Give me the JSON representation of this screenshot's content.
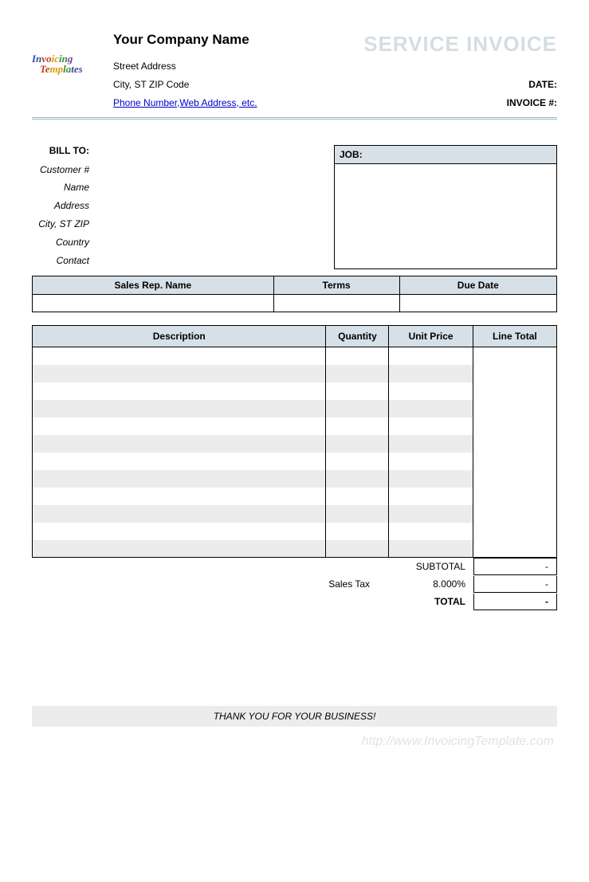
{
  "header": {
    "company_name": "Your Company Name",
    "street": "Street Address",
    "city_line": "City, ST  ZIP Code",
    "contact_link": "Phone Number,Web Address, etc.",
    "invoice_title": "SERVICE INVOICE",
    "date_label": "DATE:",
    "invoice_no_label": "INVOICE #:"
  },
  "logo": {
    "text_top": "Invoicing",
    "text_bottom": "Templates"
  },
  "billto": {
    "heading": "BILL TO:",
    "fields": {
      "customer_no": "Customer #",
      "name": "Name",
      "address": "Address",
      "city": "City, ST ZIP",
      "country": "Country",
      "contact": "Contact"
    }
  },
  "job": {
    "heading": "JOB:"
  },
  "terms": {
    "sales_rep": "Sales Rep. Name",
    "terms": "Terms",
    "due_date": "Due Date"
  },
  "items": {
    "headers": {
      "description": "Description",
      "quantity": "Quantity",
      "unit_price": "Unit Price",
      "line_total": "Line Total"
    },
    "row_count": 12,
    "stripe_color": "#ececec",
    "header_bg": "#d6e0e6"
  },
  "totals": {
    "subtotal_label": "SUBTOTAL",
    "subtotal_value": "-",
    "tax_label": "Sales Tax",
    "tax_rate": "8.000%",
    "tax_value": "-",
    "total_label": "TOTAL",
    "total_value": "-"
  },
  "footer": {
    "thankyou": "THANK YOU FOR YOUR BUSINESS!",
    "watermark": "http://www.InvoicingTemplate.com"
  }
}
